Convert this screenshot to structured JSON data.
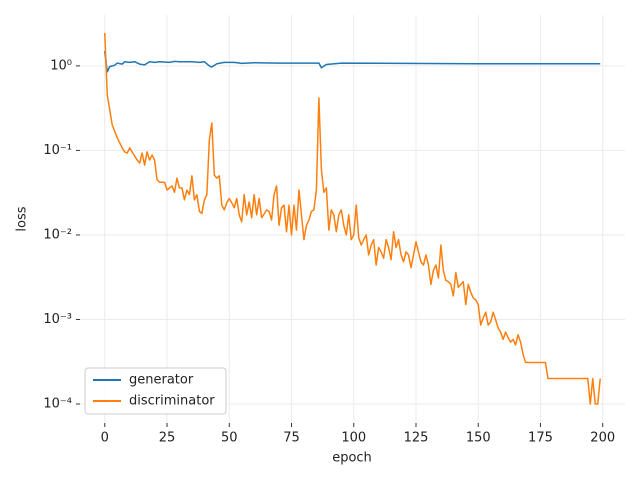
{
  "chart_data": {
    "type": "line",
    "x_label": "epoch",
    "y_label": "loss",
    "xlim": [
      -9.95,
      208.95
    ],
    "xticks": [
      0,
      25,
      50,
      75,
      100,
      125,
      150,
      175,
      200
    ],
    "ylim": [
      5.96e-05,
      4.0
    ],
    "y_scale": "log",
    "yticks": [
      {
        "value": 0.0001,
        "label": "10⁻⁴"
      },
      {
        "value": 0.001,
        "label": "10⁻³"
      },
      {
        "value": 0.01,
        "label": "10⁻²"
      },
      {
        "value": 0.1,
        "label": "10⁻¹"
      },
      {
        "value": 1,
        "label": "10⁰"
      }
    ],
    "grid": true,
    "legend": "lower left",
    "series": [
      {
        "name": "generator",
        "color": "#1f77b4",
        "x": [
          0,
          1,
          2,
          4,
          5,
          7,
          8,
          10,
          12,
          14,
          16,
          18,
          20,
          22,
          26,
          28,
          30,
          35,
          38,
          40,
          42,
          43,
          45,
          48,
          52,
          55,
          60,
          70,
          80,
          86,
          87,
          89,
          95,
          120,
          150,
          199
        ],
        "values": [
          1.5,
          0.85,
          0.98,
          1.02,
          1.08,
          1.05,
          1.12,
          1.1,
          1.12,
          1.05,
          1.03,
          1.12,
          1.1,
          1.12,
          1.1,
          1.13,
          1.12,
          1.12,
          1.1,
          1.12,
          1.0,
          0.97,
          1.06,
          1.1,
          1.1,
          1.07,
          1.09,
          1.08,
          1.08,
          1.08,
          0.95,
          1.04,
          1.08,
          1.07,
          1.06,
          1.06
        ]
      },
      {
        "name": "discriminator",
        "color": "#ff7f0e",
        "x": [
          0,
          1,
          2,
          3,
          5,
          7,
          8,
          9,
          10,
          12,
          13,
          14,
          15,
          16,
          17,
          18,
          19,
          20,
          21,
          22,
          24,
          25,
          27,
          28,
          29,
          30,
          31,
          32,
          33,
          34,
          35,
          36,
          37,
          38,
          39,
          40,
          41,
          42,
          43,
          44,
          45,
          46,
          47,
          48,
          49,
          50,
          51,
          52,
          53,
          54,
          55,
          56,
          57,
          58,
          59,
          60,
          61,
          62,
          63,
          64,
          65,
          66,
          67,
          68,
          69,
          70,
          71,
          72,
          73,
          74,
          75,
          76,
          77,
          78,
          79,
          80,
          81,
          82,
          83,
          84,
          85,
          86,
          87,
          88,
          89,
          90,
          91,
          92,
          93,
          94,
          95,
          96,
          97,
          98,
          99,
          100,
          101,
          102,
          103,
          104,
          105,
          106,
          107,
          108,
          109,
          110,
          111,
          112,
          113,
          114,
          115,
          116,
          117,
          118,
          119,
          120,
          121,
          122,
          123,
          124,
          125,
          126,
          127,
          128,
          129,
          130,
          131,
          132,
          133,
          134,
          135,
          136,
          137,
          138,
          139,
          140,
          141,
          142,
          143,
          144,
          145,
          146,
          147,
          148,
          149,
          150,
          151,
          152,
          153,
          154,
          155,
          156,
          157,
          158,
          159,
          160,
          161,
          162,
          163,
          164,
          165,
          166,
          167,
          168,
          169,
          177,
          178,
          194,
          195,
          196,
          197,
          198,
          199
        ],
        "values": [
          2.46,
          0.454,
          0.302,
          0.2,
          0.141,
          0.107,
          0.096,
          0.093,
          0.107,
          0.086,
          0.077,
          0.071,
          0.093,
          0.067,
          0.096,
          0.077,
          0.088,
          0.077,
          0.045,
          0.042,
          0.042,
          0.034,
          0.038,
          0.032,
          0.047,
          0.036,
          0.036,
          0.026,
          0.034,
          0.03,
          0.05,
          0.026,
          0.03,
          0.019,
          0.018,
          0.026,
          0.03,
          0.133,
          0.211,
          0.051,
          0.047,
          0.05,
          0.0225,
          0.0198,
          0.024,
          0.027,
          0.024,
          0.021,
          0.027,
          0.0173,
          0.0143,
          0.03,
          0.0173,
          0.0245,
          0.016,
          0.03,
          0.0173,
          0.027,
          0.016,
          0.0177,
          0.0198,
          0.019,
          0.015,
          0.03,
          0.038,
          0.013,
          0.021,
          0.0225,
          0.0109,
          0.0225,
          0.01,
          0.0225,
          0.0114,
          0.034,
          0.0173,
          0.0088,
          0.013,
          0.015,
          0.019,
          0.0198,
          0.034,
          0.418,
          0.0596,
          0.032,
          0.036,
          0.0114,
          0.0198,
          0.0173,
          0.0109,
          0.0173,
          0.0198,
          0.013,
          0.01,
          0.0173,
          0.0088,
          0.01,
          0.0225,
          0.0093,
          0.0076,
          0.0088,
          0.01,
          0.0058,
          0.0076,
          0.0088,
          0.0044,
          0.0071,
          0.0063,
          0.0053,
          0.0088,
          0.0071,
          0.0051,
          0.0109,
          0.0071,
          0.0088,
          0.0058,
          0.0048,
          0.0063,
          0.0058,
          0.0041,
          0.0058,
          0.0083,
          0.0063,
          0.0048,
          0.0044,
          0.0058,
          0.0044,
          0.0026,
          0.0038,
          0.0044,
          0.0031,
          0.0076,
          0.0038,
          0.0029,
          0.0028,
          0.0026,
          0.0019,
          0.0036,
          0.0024,
          0.0026,
          0.0028,
          0.0015,
          0.0026,
          0.0021,
          0.0018,
          0.0017,
          0.0015,
          0.00086,
          0.00104,
          0.00122,
          0.00086,
          0.00093,
          0.00122,
          0.00099,
          0.00079,
          0.00071,
          0.00058,
          0.00071,
          0.00061,
          0.00054,
          0.00058,
          0.0005,
          0.00066,
          0.00054,
          0.00039,
          0.00031,
          0.00031,
          0.0002,
          0.0002,
          0.0001,
          0.0002,
          0.0001,
          0.0001,
          0.0002
        ]
      }
    ]
  }
}
